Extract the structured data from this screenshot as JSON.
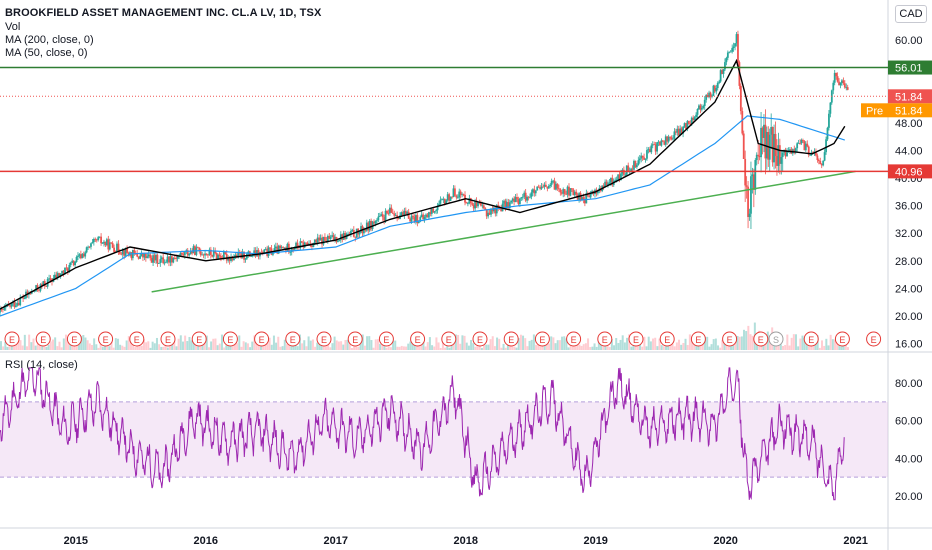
{
  "header": {
    "title": "BROOKFIELD ASSET MANAGEMENT INC. CL.A LV, 1D, TSX",
    "vol_label": "Vol",
    "ma200_label": "MA (200, close, 0)",
    "ma50_label": "MA (50, close, 0)",
    "currency": "CAD"
  },
  "rsi_panel": {
    "label": "RSI (14, close)"
  },
  "colors": {
    "up": "#26a69a",
    "down": "#ef5350",
    "ma200": "#2196f3",
    "ma50": "#000000",
    "trendline": "#4caf50",
    "resistance": "#2e7d32",
    "support": "#e53935",
    "last_price": "#ef5350",
    "premarket": "#ff9800",
    "rsi": "#9c27b0",
    "rsi_band": "#e1bee7",
    "earnings": "#e53935"
  },
  "chart_data": [
    {
      "type": "candlestick",
      "title": "BROOKFIELD ASSET MANAGEMENT INC. CL.A LV, 1D, TSX",
      "xlim": [
        "2014-06-01",
        "2021-03-31"
      ],
      "ylim": [
        15,
        64
      ],
      "x_ticks": [
        "2015",
        "2016",
        "2017",
        "2018",
        "2019",
        "2020",
        "2021"
      ],
      "y_ticks": [
        "60.00",
        "56.00",
        "52.00",
        "48.00",
        "44.00",
        "40.00",
        "36.00",
        "32.00",
        "28.00",
        "24.00",
        "20.00",
        "16.00"
      ],
      "series": [
        {
          "name": "Price",
          "x": [
            "2014-06",
            "2014-09",
            "2014-12",
            "2015-03",
            "2015-06",
            "2015-09",
            "2015-12",
            "2016-03",
            "2016-06",
            "2016-09",
            "2016-12",
            "2017-03",
            "2017-06",
            "2017-09",
            "2017-12",
            "2018-03",
            "2018-06",
            "2018-09",
            "2018-12",
            "2019-03",
            "2019-06",
            "2019-09",
            "2019-12",
            "2020-02",
            "2020-03",
            "2020-04",
            "2020-06",
            "2020-08",
            "2020-10",
            "2020-11",
            "2020-12"
          ],
          "values": [
            20.5,
            23.5,
            26.5,
            31,
            29,
            28,
            29.5,
            28.5,
            29,
            30,
            31,
            32,
            35,
            34,
            38,
            35,
            37,
            39,
            37,
            40,
            44,
            47,
            53,
            60.5,
            34,
            46,
            43,
            45,
            42,
            55,
            53
          ]
        },
        {
          "name": "MA (200, close, 0)",
          "x": [
            "2014-06",
            "2015-01",
            "2015-06",
            "2016-01",
            "2016-06",
            "2017-01",
            "2017-06",
            "2018-01",
            "2018-06",
            "2019-01",
            "2019-06",
            "2019-12",
            "2020-03",
            "2020-06",
            "2020-09",
            "2020-12"
          ],
          "values": [
            20,
            24,
            29,
            29.5,
            29,
            30,
            33,
            35,
            36,
            37,
            39,
            45,
            49,
            48.5,
            47,
            45.5
          ]
        },
        {
          "name": "MA (50, close, 0)",
          "x": [
            "2014-06",
            "2015-01",
            "2015-06",
            "2016-01",
            "2016-06",
            "2017-01",
            "2017-06",
            "2018-01",
            "2018-06",
            "2019-01",
            "2019-06",
            "2019-12",
            "2020-02",
            "2020-04",
            "2020-06",
            "2020-09",
            "2020-11",
            "2020-12"
          ],
          "values": [
            21,
            27,
            30,
            28,
            29,
            31,
            34,
            37,
            35,
            38,
            42,
            51,
            57,
            45,
            44,
            43.5,
            45,
            47.5
          ]
        },
        {
          "name": "Trendline",
          "x": [
            "2015-08",
            "2021-01"
          ],
          "values": [
            23.5,
            40.96
          ]
        }
      ],
      "horizontal_lines": [
        {
          "name": "resistance",
          "value": 56.01,
          "label": "56.01"
        },
        {
          "name": "support",
          "value": 40.96,
          "label": "40.96"
        },
        {
          "name": "last_price",
          "value": 51.84,
          "label": "51.84"
        }
      ],
      "premarket_label": {
        "prefix": "Pre",
        "value": "51.84"
      },
      "earnings_markers": [
        "E",
        "E",
        "E",
        "E",
        "E",
        "E",
        "E",
        "E",
        "E",
        "E",
        "E",
        "E",
        "E",
        "E",
        "E",
        "E",
        "E",
        "E",
        "E",
        "E",
        "E",
        "E",
        "E",
        "E",
        "E",
        "S",
        "E",
        "E",
        "E"
      ]
    },
    {
      "type": "line",
      "title": "RSI (14, close)",
      "ylim": [
        15,
        90
      ],
      "y_ticks": [
        "80.00",
        "60.00",
        "40.00",
        "20.00"
      ],
      "band": [
        30,
        70
      ],
      "series": [
        {
          "name": "RSI (14, close)",
          "x": [
            "2014-06",
            "2014-09",
            "2014-12",
            "2015-03",
            "2015-06",
            "2015-09",
            "2015-12",
            "2016-03",
            "2016-06",
            "2016-09",
            "2016-12",
            "2017-03",
            "2017-06",
            "2017-09",
            "2017-12",
            "2018-02",
            "2018-06",
            "2018-09",
            "2018-12",
            "2019-03",
            "2019-06",
            "2019-09",
            "2019-12",
            "2020-02",
            "2020-03",
            "2020-06",
            "2020-09",
            "2020-11",
            "2020-12"
          ],
          "values": [
            58,
            86,
            55,
            70,
            45,
            32,
            62,
            48,
            55,
            40,
            60,
            50,
            65,
            45,
            75,
            25,
            55,
            72,
            28,
            80,
            55,
            62,
            58,
            86,
            25,
            58,
            48,
            23,
            55
          ]
        }
      ]
    }
  ]
}
